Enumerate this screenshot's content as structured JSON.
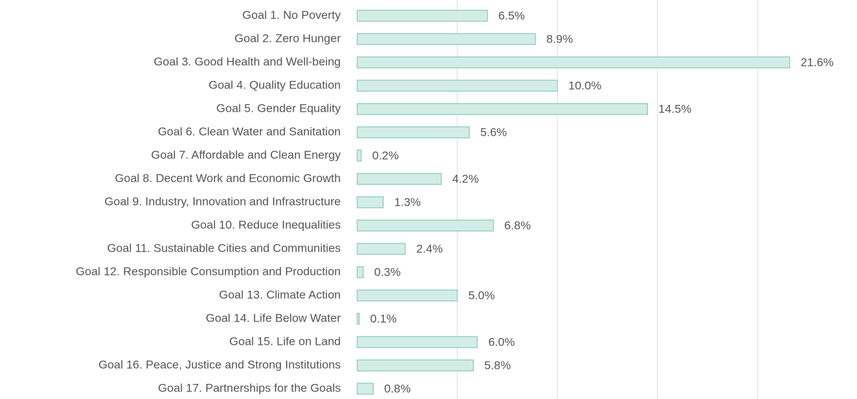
{
  "chart_data": {
    "type": "hbar",
    "categories": [
      "Goal 1. No Poverty",
      "Goal 2. Zero Hunger",
      "Goal 3. Good Health and Well-being",
      "Goal 4. Quality Education",
      "Goal 5. Gender Equality",
      "Goal 6. Clean Water and Sanitation",
      "Goal 7. Affordable and Clean Energy",
      "Goal 8. Decent Work and Economic Growth",
      "Goal 9. Industry, Innovation and Infrastructure",
      "Goal 10. Reduce Inequalities",
      "Goal 11. Sustainable Cities and Communities",
      "Goal 12. Responsible Consumption and Production",
      "Goal 13. Climate Action",
      "Goal 14. Life Below Water",
      "Goal 15. Life on Land",
      "Goal 16. Peace, Justice and Strong Institutions",
      "Goal 17. Partnerships for the Goals"
    ],
    "values": [
      6.5,
      8.9,
      21.6,
      10.0,
      14.5,
      5.6,
      0.2,
      4.2,
      1.3,
      6.8,
      2.4,
      0.3,
      5.0,
      0.1,
      6.0,
      5.8,
      0.8
    ],
    "value_labels": [
      "6.5%",
      "8.9%",
      "21.6%",
      "10.0%",
      "14.5%",
      "5.6%",
      "0.2%",
      "4.2%",
      "1.3%",
      "6.8%",
      "2.4%",
      "0.3%",
      "5.0%",
      "0.1%",
      "6.0%",
      "5.8%",
      "0.8%"
    ],
    "color": "#d3ede6",
    "edge_color": "#86c9b8",
    "xlim": [
      0,
      25
    ],
    "xticks": [
      5,
      10,
      15,
      20
    ],
    "grid": true
  }
}
